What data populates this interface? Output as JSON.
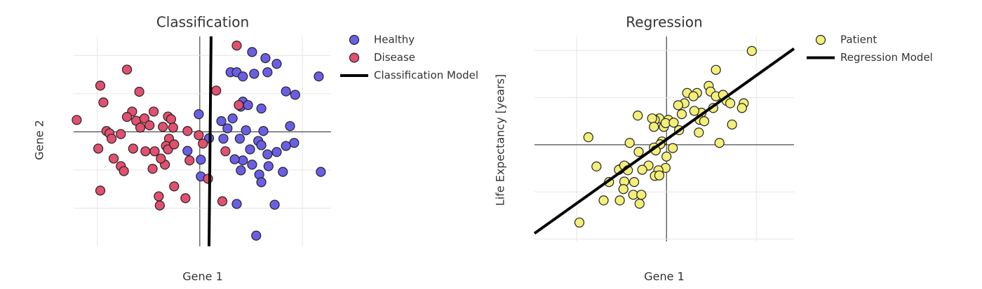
{
  "chart_data": [
    {
      "type": "scatter",
      "title": "Classification",
      "x_label": "Gene 1",
      "y_label": "Gene 2",
      "xlim": [
        -1.23,
        1.28
      ],
      "ylim": [
        -3,
        2.5
      ],
      "xticks": [
        -1,
        0,
        1
      ],
      "yticks": [
        -2,
        -1,
        0,
        1,
        2
      ],
      "grid": true,
      "zeroline": true,
      "series": [
        {
          "name": "Healthy",
          "color": "#6b5ee6",
          "x": [
            0.51,
            0.64,
            0.75,
            1.16,
            0.3,
            0.36,
            0.42,
            0.53,
            0.66,
            0.84,
            0.93,
            0.42,
            0.4,
            0.47,
            0.6,
            -0.01,
            0.32,
            0.21,
            0.45,
            0.27,
            0.62,
            0.88,
            0.09,
            0.23,
            0.39,
            0.57,
            0.6,
            0.92,
            0.84,
            0.75,
            0.42,
            0.34,
            0.66,
            0.49,
            -0.12,
            0.01,
            0.51,
            0.4,
            0.58,
            0.67,
            0.81,
            1.18,
            0.01,
            0.6,
            0.36,
            0.73,
            0.55
          ],
          "values": [
            2.09,
            1.93,
            1.78,
            1.45,
            1.56,
            1.56,
            1.45,
            1.52,
            1.56,
            1.06,
            0.97,
            0.79,
            0.66,
            0.7,
            0.61,
            0.46,
            0.35,
            0.28,
            0.04,
            0.09,
            0.02,
            0.15,
            -0.17,
            -0.18,
            -0.18,
            -0.24,
            -0.35,
            -0.29,
            -0.37,
            -0.53,
            -0.75,
            -0.72,
            -0.59,
            -0.46,
            -0.5,
            -0.73,
            -0.86,
            -1.01,
            -1.12,
            -0.9,
            -1.05,
            -1.05,
            -1.17,
            -1.32,
            -1.89,
            -1.91,
            -2.72
          ]
        },
        {
          "name": "Disease",
          "color": "#e2506f",
          "x": [
            0.36,
            -0.71,
            -0.97,
            -0.59,
            0.16,
            -0.94,
            -1.2,
            -0.66,
            -0.71,
            -0.62,
            -0.54,
            -0.45,
            -0.31,
            -0.28,
            -0.36,
            -0.26,
            -0.49,
            -0.58,
            -0.91,
            -0.88,
            -0.77,
            -0.86,
            -0.12,
            -0.01,
            -0.3,
            -0.33,
            -0.31,
            -0.25,
            -0.44,
            -0.53,
            -0.65,
            -0.99,
            -0.84,
            -0.77,
            -0.74,
            -0.46,
            -0.34,
            -0.38,
            -0.1,
            -0.25,
            -0.14,
            -0.97,
            -0.4,
            -0.39,
            0.22,
            0.38,
            0.25,
            0.03,
            0.08
          ],
          "values": [
            2.26,
            1.63,
            1.21,
            1.05,
            1.08,
            0.77,
            0.31,
            0.53,
            0.39,
            0.29,
            0.35,
            0.53,
            0.4,
            0.33,
            0.13,
            0.11,
            0.17,
            0.11,
            0.02,
            -0.04,
            -0.06,
            -0.18,
            0.02,
            -0.09,
            -0.18,
            -0.37,
            -0.46,
            -0.33,
            -0.51,
            -0.51,
            -0.44,
            -0.44,
            -0.7,
            -0.9,
            -1.03,
            -0.97,
            -0.86,
            -0.7,
            -0.75,
            -1.43,
            -1.74,
            -1.54,
            -1.69,
            -1.93,
            -1.82,
            0.7,
            -0.51,
            -0.31,
            -1.23
          ]
        },
        {
          "name": "Classification Model",
          "type": "line",
          "color": "#000000",
          "x": [
            0.09,
            0.11
          ],
          "values": [
            -3,
            2.5
          ]
        }
      ]
    },
    {
      "type": "scatter",
      "title": "Regression",
      "x_label": "Gene 1",
      "y_label": "Life Expectancy [years]",
      "xlim": [
        -1.47,
        1.42
      ],
      "ylim": [
        -2.05,
        2.3
      ],
      "xticks": [
        -1,
        0,
        1
      ],
      "yticks": [
        -2,
        -1,
        0,
        1,
        2
      ],
      "grid": true,
      "zeroline": true,
      "series": [
        {
          "name": "Patient",
          "color": "#f3ef78",
          "x": [
            0.95,
            0.55,
            0.47,
            0.23,
            0.34,
            0.2,
            0.3,
            0.49,
            0.55,
            0.63,
            0.67,
            0.71,
            0.86,
            0.84,
            0.52,
            0.39,
            0.31,
            0.13,
            0.02,
            -0.08,
            -0.13,
            -0.32,
            -0.16,
            -0.14,
            -0.03,
            -0.01,
            0.08,
            0.14,
            0.36,
            0.37,
            0.42,
            0.73,
            0.59,
            0.07,
            -0.05,
            -0.07,
            -0.14,
            -0.41,
            -0.87,
            -0.31,
            0.0,
            -0.01,
            -0.09,
            -0.2,
            -0.27,
            -0.13,
            -0.08,
            -0.45,
            -0.49,
            -0.53,
            -0.47,
            -0.43,
            -0.78,
            -0.64,
            -0.47,
            -0.36,
            -0.48,
            -0.37,
            -0.28,
            -0.52,
            -0.7,
            -0.3,
            -0.97,
            -0.12,
            0.17
          ],
          "values": [
            1.99,
            1.59,
            1.25,
            1.1,
            1.1,
            0.88,
            1.03,
            1.13,
            1.03,
            1.06,
            0.93,
            0.88,
            0.88,
            0.78,
            0.78,
            0.68,
            0.72,
            0.84,
            0.53,
            0.56,
            0.53,
            0.62,
            0.56,
            0.38,
            0.38,
            0.46,
            0.47,
            0.31,
            0.26,
            0.53,
            0.5,
            0.43,
            0.04,
            -0.07,
            0.07,
            0.01,
            -0.06,
            0.04,
            0.16,
            -0.15,
            -0.25,
            -0.49,
            -0.54,
            -0.44,
            -0.53,
            -0.66,
            -0.65,
            -0.47,
            -0.49,
            -0.53,
            -0.44,
            -0.54,
            -0.46,
            -0.79,
            -0.78,
            -0.79,
            -0.94,
            -1.06,
            -1.06,
            -1.18,
            -1.18,
            -1.25,
            -1.65,
            -0.12,
            0.65
          ]
        },
        {
          "name": "Regression Model",
          "type": "line",
          "color": "#000000",
          "x": [
            -1.47,
            1.42
          ],
          "values": [
            -1.88,
            2.04
          ]
        }
      ]
    }
  ]
}
